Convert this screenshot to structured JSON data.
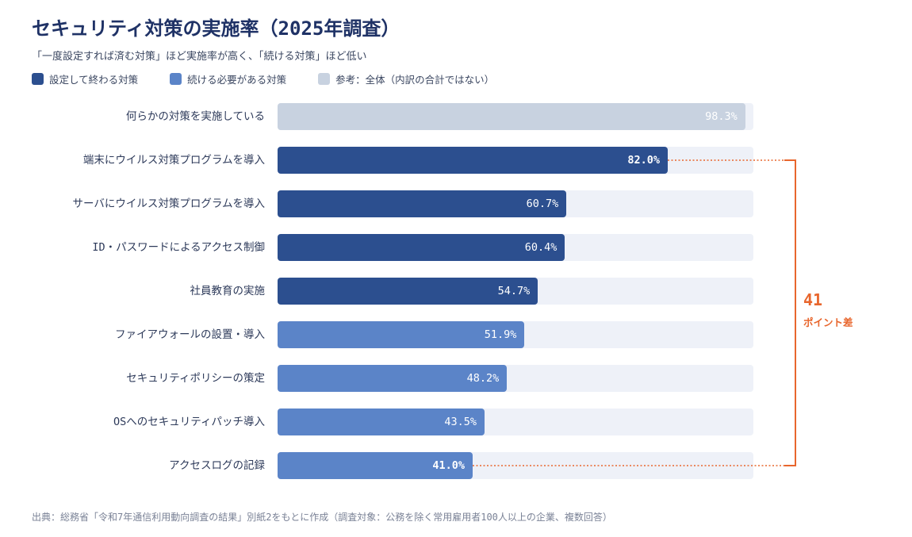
{
  "title": "セキュリティ対策の実施率（2025年調査）",
  "subtitle": "「一度設定すれば済む対策」ほど実施率が高く、「続ける対策」ほど低い",
  "legend": [
    {
      "label": "設定して終わる対策",
      "color": "#2c4f8f"
    },
    {
      "label": "続ける必要がある対策",
      "color": "#5b84c8"
    },
    {
      "label": "参考：全体（内訳の合計ではない）",
      "color": "#c8d2e0"
    }
  ],
  "annotation": {
    "value": "41",
    "label": "ポイント差",
    "color": "#e8662d"
  },
  "source": "出典：総務省「令和7年通信利用動向調査の結果」別紙2をもとに作成（調査対象：公務を除く常用雇用者100人以上の企業、複数回答）",
  "colors": {
    "track": "#eef1f8"
  },
  "chart_data": {
    "type": "bar",
    "orientation": "horizontal",
    "xlim": [
      0,
      100
    ],
    "categories": [
      "何らかの対策を実施している",
      "端末にウイルス対策プログラムを導入",
      "サーバにウイルス対策プログラムを導入",
      "ID・パスワードによるアクセス制御",
      "社員教育の実施",
      "ファイアウォールの設置・導入",
      "セキュリティポリシーの策定",
      "OSへのセキュリティパッチ導入",
      "アクセスログの記録"
    ],
    "values": [
      98.3,
      82.0,
      60.7,
      60.4,
      54.7,
      51.9,
      48.2,
      43.5,
      41.0
    ],
    "value_labels": [
      "98.3%",
      "82.0%",
      "60.7%",
      "60.4%",
      "54.7%",
      "51.9%",
      "48.2%",
      "43.5%",
      "41.0%"
    ],
    "groups": [
      "参考",
      "設定",
      "設定",
      "設定",
      "設定",
      "続ける",
      "続ける",
      "続ける",
      "続ける"
    ],
    "group_colors": {
      "参考": "#c8d2e0",
      "設定": "#2c4f8f",
      "続ける": "#5b84c8"
    },
    "highlighted": [
      1,
      8
    ]
  }
}
